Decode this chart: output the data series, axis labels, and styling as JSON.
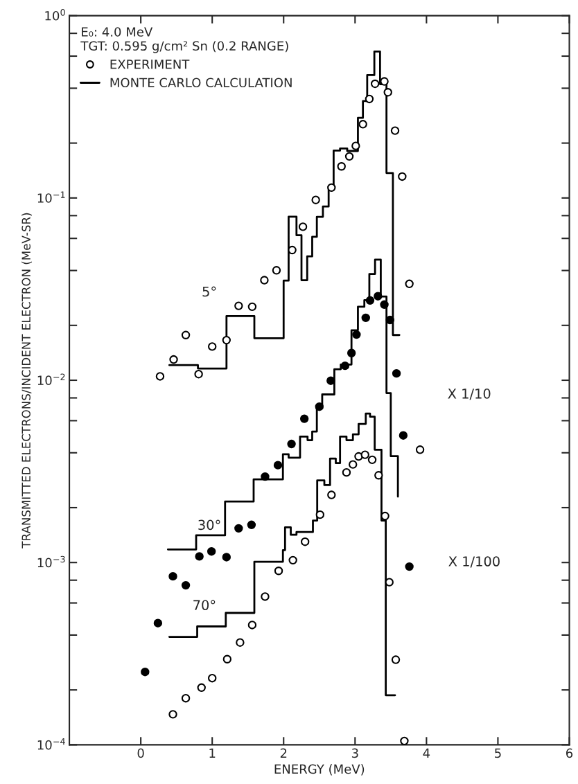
{
  "chart_data": {
    "type": "scatter",
    "xlabel": "ENERGY (MeV)",
    "ylabel": "TRANSMITTED ELECTRONS/INCIDENT ELECTRON (MeV-SR)",
    "legend_title": "E₀: 4.0 MeV\nTGT: 0.595 g/cm² Sn (0.2 RANGE)",
    "legend": "top left",
    "log": "y",
    "grid": false,
    "xlim": [
      -1,
      6
    ],
    "xticks": [
      0,
      1,
      2,
      3,
      4,
      5,
      6
    ],
    "ylim": [
      0.0001,
      1
    ],
    "yticks": [
      {
        "value": 0.0001,
        "label": "10$^{−4}$"
      },
      {
        "value": 0.0002,
        "label": null
      },
      {
        "value": 0.0004,
        "label": null
      },
      {
        "value": 0.0006,
        "label": null
      },
      {
        "value": 0.0008,
        "label": null
      },
      {
        "value": 0.001,
        "label": "10$^{−3}$"
      },
      {
        "value": 0.002,
        "label": null
      },
      {
        "value": 0.004,
        "label": null
      },
      {
        "value": 0.006,
        "label": null
      },
      {
        "value": 0.008,
        "label": null
      },
      {
        "value": 0.01,
        "label": "10$^{−2}$"
      },
      {
        "value": 0.02,
        "label": null
      },
      {
        "value": 0.04,
        "label": null
      },
      {
        "value": 0.06,
        "label": null
      },
      {
        "value": 0.08,
        "label": null
      },
      {
        "value": 0.1,
        "label": "10$^{−1}$"
      },
      {
        "value": 0.2,
        "label": null
      },
      {
        "value": 0.4,
        "label": null
      },
      {
        "value": 0.6,
        "label": null
      },
      {
        "value": 0.8,
        "label": null
      },
      {
        "value": 1,
        "label": "10$^{0}$"
      }
    ],
    "series": [
      {
        "name": "EXPERIMENT",
        "marker": "circle",
        "color": "#ffffff",
        "x": [
          0.27,
          0.46,
          0.63,
          0.81,
          1.0,
          1.2,
          1.37,
          1.56,
          1.73,
          1.9,
          2.12,
          2.27,
          2.45,
          2.67,
          2.81,
          2.92,
          3.01,
          3.11,
          3.2,
          3.28,
          3.41,
          3.46,
          3.56,
          3.66,
          3.76
        ],
        "values": [
          0.0105,
          0.013,
          0.0177,
          0.0108,
          0.0153,
          0.0166,
          0.0256,
          0.0253,
          0.0354,
          0.0401,
          0.0518,
          0.0695,
          0.0975,
          0.114,
          0.149,
          0.169,
          0.193,
          0.254,
          0.349,
          0.423,
          0.436,
          0.38,
          0.234,
          0.131,
          0.0338
        ]
      },
      {
        "name": "MONTE CARLO CALCULATION",
        "type": "step",
        "line_style": "solid",
        "color": "#000000",
        "x": [
          0.4,
          0.8,
          1.2,
          1.59,
          2.0,
          2.07,
          2.18,
          2.25,
          2.33,
          2.4,
          2.465,
          2.55,
          2.63,
          2.7,
          2.79,
          2.89,
          3.04,
          3.11,
          3.17,
          3.27,
          3.35,
          3.44,
          3.53,
          3.62
        ],
        "values": [
          0.0121,
          0.0116,
          0.0225,
          0.017,
          0.0352,
          0.079,
          0.0624,
          0.0354,
          0.0478,
          0.0612,
          0.0788,
          0.0898,
          0.115,
          0.182,
          0.187,
          0.181,
          0.275,
          0.34,
          0.472,
          0.636,
          0.421,
          0.137,
          0.0177,
          0.0177
        ]
      },
      {
        "marker": "circle",
        "color": "#000000",
        "x": [
          0.06,
          0.24,
          0.45,
          0.63,
          0.82,
          0.99,
          1.2,
          1.37,
          1.55,
          1.74,
          1.92,
          2.11,
          2.29,
          2.5,
          2.66,
          2.86,
          2.95,
          3.02,
          3.15,
          3.21,
          3.32,
          3.41,
          3.49,
          3.58,
          3.675,
          3.76
        ],
        "values": [
          0.000251,
          0.000465,
          0.00084,
          0.00075,
          0.00108,
          0.00115,
          0.00107,
          0.00154,
          0.00161,
          0.00296,
          0.00342,
          0.00447,
          0.00615,
          0.00716,
          0.00994,
          0.012,
          0.0141,
          0.0178,
          0.022,
          0.0274,
          0.0289,
          0.026,
          0.0214,
          0.0109,
          0.00498,
          0.00095
        ]
      },
      {
        "type": "step",
        "line_style": "solid",
        "color": "#000000",
        "x": [
          0.38,
          0.775,
          1.18,
          1.58,
          1.99,
          2.07,
          2.23,
          2.335,
          2.4,
          2.465,
          2.54,
          2.71,
          2.8,
          2.95,
          3.04,
          3.13,
          3.2,
          3.28,
          3.36,
          3.44,
          3.5,
          3.6,
          3.6
        ],
        "values": [
          0.00118,
          0.00141,
          0.00216,
          0.00286,
          0.00393,
          0.00376,
          0.00491,
          0.00469,
          0.00523,
          0.00705,
          0.00836,
          0.0115,
          0.0122,
          0.0188,
          0.0253,
          0.0275,
          0.0383,
          0.0459,
          0.0288,
          0.0085,
          0.00383,
          0.00383,
          0.0023
        ]
      },
      {
        "marker": "circle",
        "color": "#ffffff",
        "x": [
          0.45,
          0.63,
          0.85,
          1.0,
          1.21,
          1.39,
          1.56,
          1.74,
          1.93,
          2.13,
          2.3,
          2.51,
          2.67,
          2.88,
          2.97,
          3.05,
          3.14,
          3.24,
          3.33,
          3.42,
          3.48,
          3.57,
          3.69,
          3.91
        ],
        "values": [
          0.000147,
          0.00018,
          0.000206,
          0.000232,
          0.000295,
          0.000364,
          0.000454,
          0.00065,
          0.0009,
          0.00103,
          0.0013,
          0.00183,
          0.00235,
          0.00312,
          0.00345,
          0.00382,
          0.0039,
          0.00366,
          0.00301,
          0.0018,
          0.00078,
          0.000293,
          0.000105,
          0.00416
        ]
      },
      {
        "type": "step",
        "line_style": "solid",
        "color": "#000000",
        "x": [
          0.4,
          0.79,
          1.19,
          1.59,
          1.99,
          2.02,
          2.1,
          2.18,
          2.41,
          2.47,
          2.57,
          2.65,
          2.73,
          2.79,
          2.88,
          2.97,
          3.05,
          3.15,
          3.21,
          3.275,
          3.37,
          3.43,
          3.56
        ],
        "values": [
          0.000391,
          0.000446,
          0.000529,
          0.00101,
          0.00117,
          0.00156,
          0.00142,
          0.00147,
          0.0017,
          0.00282,
          0.00266,
          0.00372,
          0.00351,
          0.00491,
          0.00469,
          0.00505,
          0.00576,
          0.00656,
          0.00631,
          0.00416,
          0.0017,
          0.000187,
          0.000187
        ]
      }
    ],
    "annotations": [
      "5°",
      "30°",
      "70°",
      "X 1/10",
      "X 1/100"
    ]
  }
}
